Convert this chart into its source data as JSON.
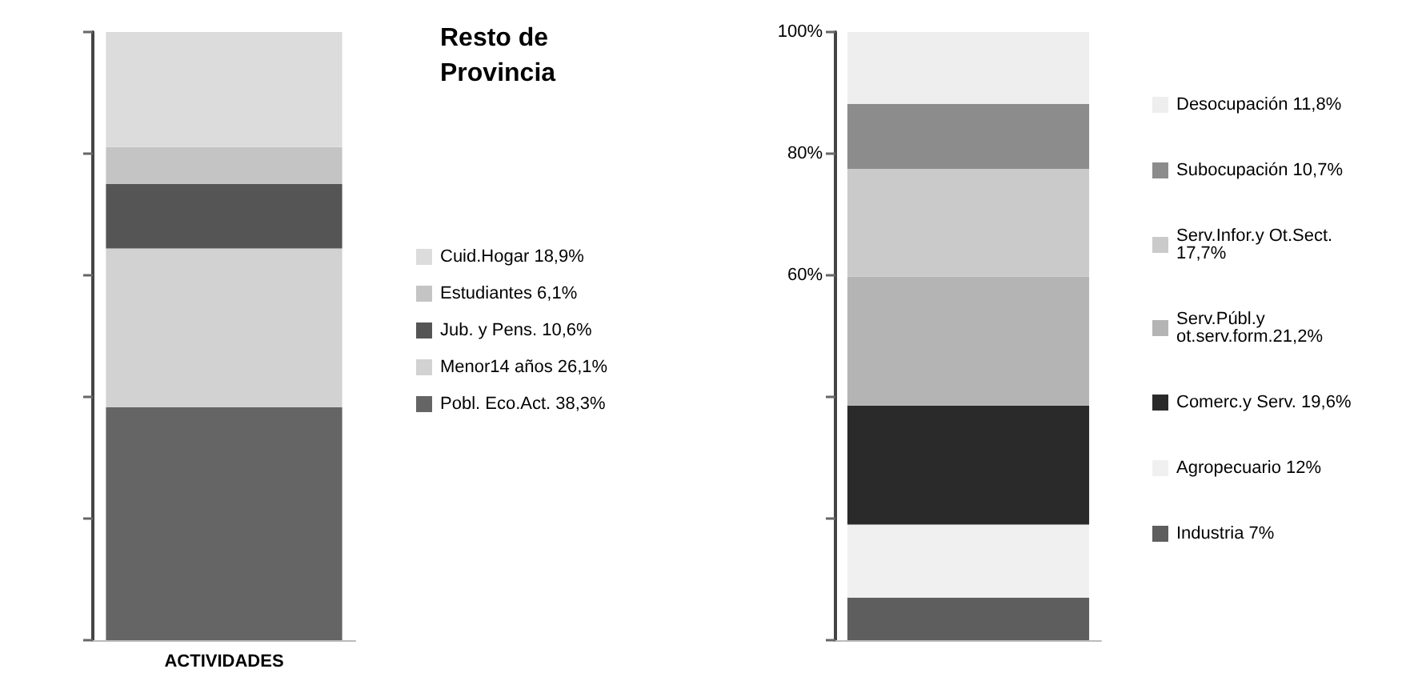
{
  "chart_data": [
    {
      "type": "bar",
      "legend_title": "Resto de Provincia",
      "stacked": true,
      "categories": [
        "ACTIVIDADES"
      ],
      "ylim": [
        0,
        100
      ],
      "yticks": [
        {
          "value": 0,
          "label": null
        },
        {
          "value": 20,
          "label": null
        },
        {
          "value": 40,
          "label": null
        },
        {
          "value": 60,
          "label": null
        },
        {
          "value": 80,
          "label": null
        },
        {
          "value": 100,
          "label": null
        }
      ],
      "tick_labels": "x",
      "grid": false,
      "legend": "right",
      "series": [
        {
          "name": "Pobl. Eco.Act. 38,3%",
          "color": "#656565",
          "values": [
            38.3
          ]
        },
        {
          "name": "Menor14 años 26,1%",
          "color": "#d2d2d2",
          "values": [
            26.1
          ]
        },
        {
          "name": "Jub. y Pens. 10,6%",
          "color": "#555555",
          "values": [
            10.6
          ]
        },
        {
          "name": "Estudiantes 6,1%",
          "color": "#c4c4c4",
          "values": [
            6.1
          ]
        },
        {
          "name": "Cuid.Hogar 18,9%",
          "color": "#dcdcdc",
          "values": [
            18.9
          ]
        }
      ]
    },
    {
      "type": "bar",
      "stacked": true,
      "categories": [
        null
      ],
      "ylim": [
        0,
        100
      ],
      "yticks": [
        {
          "value": 0,
          "label": null
        },
        {
          "value": 20,
          "label": null
        },
        {
          "value": 40,
          "label": null
        },
        {
          "value": 60,
          "label": "60%"
        },
        {
          "value": 80,
          "label": "80%"
        },
        {
          "value": 100,
          "label": "100%"
        }
      ],
      "grid": false,
      "legend": "right",
      "series": [
        {
          "name": "Industria 7%",
          "color": "#5e5e5e",
          "values": [
            7
          ]
        },
        {
          "name": "Agropecuario 12%",
          "color": "#f0f0f0",
          "values": [
            12
          ]
        },
        {
          "name": "Comerc.y Serv. 19,6%",
          "color": "#2a2a2a",
          "values": [
            19.6
          ]
        },
        {
          "name": "Serv.Públ.y ot.serv.form.21,2%",
          "color": "#b4b4b4",
          "values": [
            21.2
          ]
        },
        {
          "name": "Serv.Infor.y Ot.Sect. 17,7%",
          "color": "#cacaca",
          "values": [
            17.7
          ]
        },
        {
          "name": "Subocupación 10,7%",
          "color": "#8c8c8c",
          "values": [
            10.7
          ]
        },
        {
          "name": "Desocupación 11,8%",
          "color": "#eeeeee",
          "values": [
            11.8
          ]
        }
      ]
    }
  ]
}
